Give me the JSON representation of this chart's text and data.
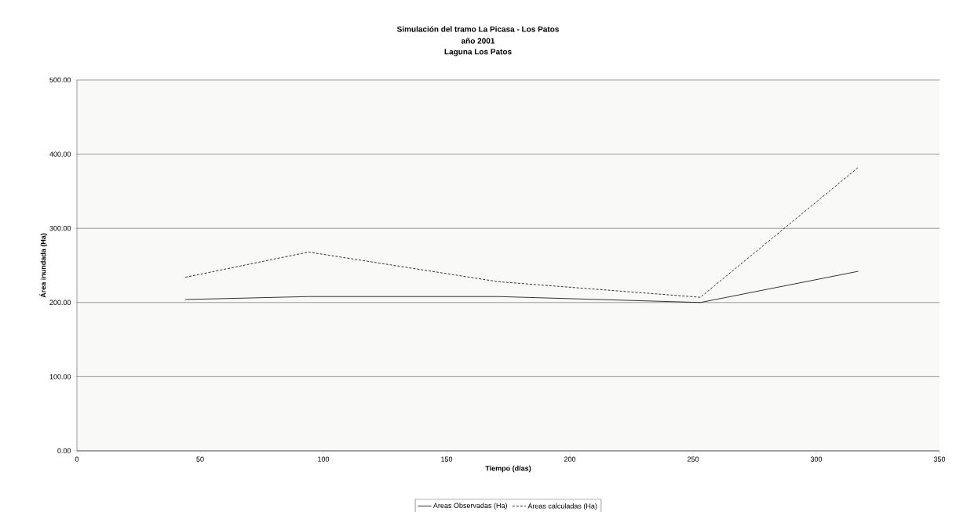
{
  "chart_data": {
    "type": "line",
    "title": "Simulación del tramo La Picasa - Los Patos",
    "subtitle": "año 2001",
    "annotations": [
      "Laguna Los Patos"
    ],
    "xlabel": "Tiempo (días)",
    "ylabel": "Área inundada (Ha)",
    "x": [
      44,
      94,
      171,
      253,
      317
    ],
    "series": [
      {
        "name": "Areas Observadas (Ha)",
        "color": "#000000",
        "line_style": "solid",
        "values": [
          204,
          208,
          208,
          200,
          242
        ]
      },
      {
        "name": "Áreas calculadas (Ha)",
        "color": "#000000",
        "line_style": "dashed",
        "values": [
          234,
          268,
          228,
          207,
          382
        ]
      }
    ],
    "xlim": [
      0,
      350
    ],
    "xticks": [
      0,
      50,
      100,
      150,
      200,
      250,
      300,
      350
    ],
    "ylim": [
      0,
      500
    ],
    "yticks": [
      {
        "value": 0,
        "label": "0.00"
      },
      {
        "value": 100,
        "label": "100.00"
      },
      {
        "value": 200,
        "label": "200.00"
      },
      {
        "value": 300,
        "label": "300.00"
      },
      {
        "value": 400,
        "label": "400.00"
      },
      {
        "value": 500,
        "label": "500.00"
      }
    ],
    "grid": "y",
    "legend": "bottom",
    "marker": "none"
  }
}
